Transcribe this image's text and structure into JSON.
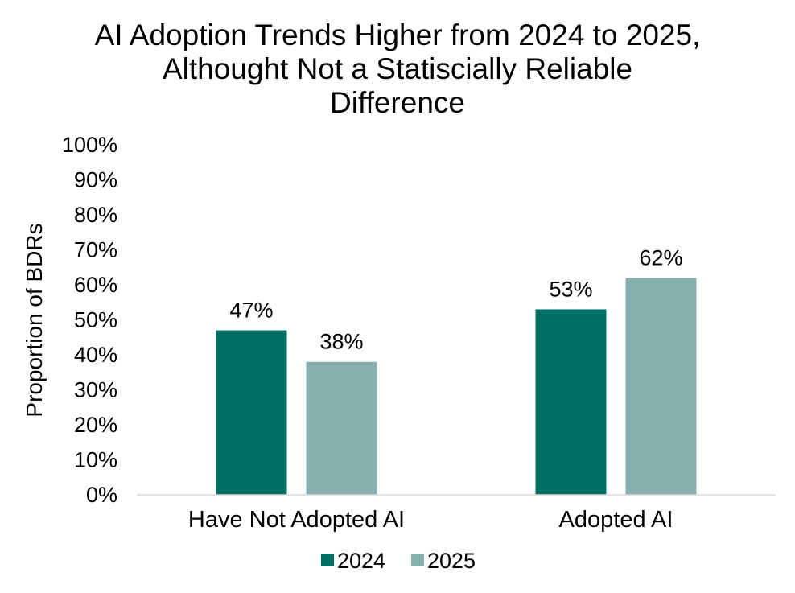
{
  "chart_data": {
    "type": "bar",
    "title": "AI Adoption Trends Higher from 2024 to 2025, Althought Not a Statiscially Reliable Difference",
    "title_lines": [
      "AI Adoption Trends Higher from 2024 to 2025,",
      "Althought Not a Statiscially Reliable",
      "Difference"
    ],
    "xlabel": "",
    "ylabel": "Proportion of BDRs",
    "categories": [
      "Have Not Adopted AI",
      "Adopted AI"
    ],
    "series": [
      {
        "name": "2024",
        "values": [
          47,
          53
        ],
        "color": "#007065"
      },
      {
        "name": "2025",
        "values": [
          38,
          62
        ],
        "color": "#86B1AE"
      }
    ],
    "data_labels": [
      [
        "47%",
        "53%"
      ],
      [
        "38%",
        "62%"
      ]
    ],
    "ylim": [
      0,
      100
    ],
    "y_ticks": [
      0,
      10,
      20,
      30,
      40,
      50,
      60,
      70,
      80,
      90,
      100
    ],
    "y_tick_labels": [
      "0%",
      "10%",
      "20%",
      "30%",
      "40%",
      "50%",
      "60%",
      "70%",
      "80%",
      "90%",
      "100%"
    ],
    "grid": false,
    "legend_position": "bottom-center",
    "axis_color": "#D9D9D9"
  }
}
